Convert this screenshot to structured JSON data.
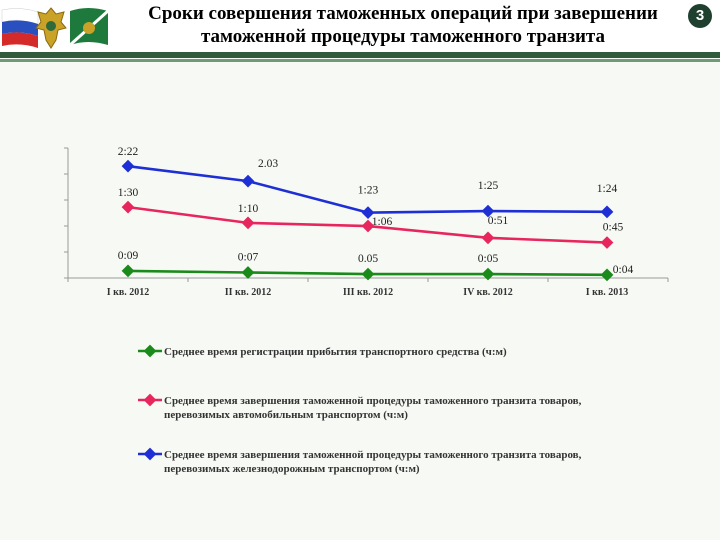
{
  "header": {
    "title_line1": "Сроки совершения таможенных операций при завершении",
    "title_line2": "таможенной процедуры таможенного транзита",
    "page_number": "3"
  },
  "colors": {
    "green": "#1a8a1a",
    "pink": "#e8265e",
    "blue": "#1f2fd6",
    "header_rule": "#2f5a3c"
  },
  "chart_data": {
    "type": "line",
    "categories": [
      "I кв. 2012",
      "II кв. 2012",
      "III кв. 2012",
      "IV кв. 2012",
      "I кв. 2013"
    ],
    "y_unit": "minutes",
    "ylim": [
      0,
      160
    ],
    "grid": false,
    "legend_position": "bottom",
    "series": [
      {
        "name": "Среднее время регистрации прибытия транспортного средства (ч:м)",
        "name_lines": [
          "Среднее время регистрации прибытия транспортного средства (ч:м)"
        ],
        "color": "#1a8a1a",
        "values": [
          9,
          7,
          5,
          5,
          4
        ],
        "labels": [
          "0:09",
          "0:07",
          "0.05",
          "0:05",
          "0:04"
        ]
      },
      {
        "name": "Среднее время завершения таможенной процедуры таможенного транзита товаров, перевозимых автомобильным транспортом (ч:м)",
        "name_lines": [
          "Среднее время завершения таможенной процедуры таможенного транзита товаров,",
          "перевозимых автомобильным транспортом (ч:м)"
        ],
        "color": "#e8265e",
        "values": [
          90,
          70,
          66,
          51,
          45
        ],
        "labels": [
          "1:30",
          "1:10",
          "1:06",
          "0:51",
          "0:45"
        ]
      },
      {
        "name": "Среднее время завершения таможенной процедуры таможенного транзита товаров, перевозимых железнодорожным транспортом (ч:м)",
        "name_lines": [
          "Среднее время завершения таможенной процедуры таможенного транзита товаров,",
          "перевозимых железнодорожным транспортом (ч:м)"
        ],
        "color": "#1f2fd6",
        "values": [
          142,
          123,
          83,
          85,
          84
        ],
        "labels": [
          "2:22",
          "2.03",
          "1:23",
          "1:25",
          "1:24"
        ]
      }
    ]
  }
}
